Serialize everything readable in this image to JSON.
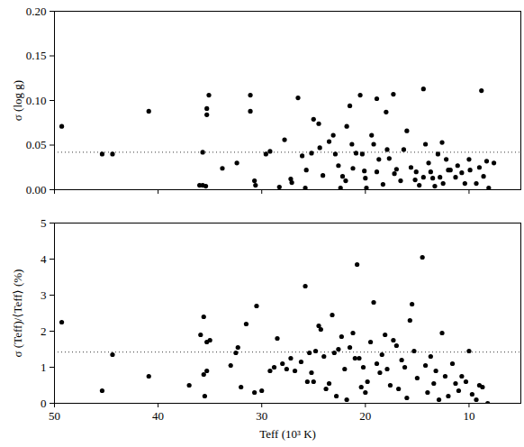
{
  "chart_data": [
    {
      "type": "scatter",
      "ylabel": "σ (log g)",
      "xlim": [
        50,
        5
      ],
      "xticks": [
        50,
        40,
        30,
        20,
        10
      ],
      "ylim": [
        0,
        0.2
      ],
      "yticks": [
        {
          "value": 0,
          "label": "0.00"
        },
        0.05,
        {
          "value": 0.1,
          "label": "0.10"
        },
        0.15,
        {
          "value": 0.2,
          "label": "0.20"
        }
      ],
      "tick_labels": "y",
      "grid": false,
      "color": "#000000",
      "marker": "circle",
      "hline": {
        "value": 0.042,
        "line_style": "dotted"
      },
      "x": [
        49.3,
        45.4,
        44.4,
        40.9,
        35.1,
        36.0,
        35.7,
        35.4,
        35.7,
        35.3,
        35.3,
        33.8,
        32.4,
        31.1,
        31.1,
        30.7,
        30.6,
        29.6,
        29.2,
        28.3,
        27.8,
        26.5,
        27.2,
        27.1,
        26.1,
        25.8,
        25.7,
        25.2,
        25.0,
        24.5,
        24.4,
        24.1,
        23.5,
        23.1,
        22.9,
        22.6,
        22.4,
        22.2,
        21.9,
        21.8,
        21.5,
        21.3,
        21.2,
        20.9,
        20.5,
        20.3,
        20.1,
        20.0,
        19.9,
        19.4,
        19.2,
        18.9,
        18.9,
        18.7,
        18.3,
        18.0,
        17.9,
        17.7,
        17.3,
        17.2,
        17.0,
        16.6,
        16.3,
        16.0,
        15.6,
        15.2,
        15.1,
        14.8,
        14.4,
        14.4,
        14.2,
        13.9,
        13.7,
        13.5,
        13.3,
        13.0,
        12.8,
        12.6,
        12.5,
        12.2,
        12.0,
        11.8,
        11.3,
        11.1,
        10.7,
        10.4,
        10.0,
        9.9,
        9.3,
        9.0,
        8.8,
        8.6,
        8.3,
        8.1,
        7.6
      ],
      "values": [
        0.071,
        0.04,
        0.04,
        0.088,
        0.106,
        0.005,
        0.005,
        0.004,
        0.042,
        0.091,
        0.084,
        0.024,
        0.03,
        0.106,
        0.088,
        0.01,
        0.005,
        0.04,
        0.043,
        0.003,
        0.056,
        0.103,
        0.012,
        0.008,
        0.038,
        0.002,
        0.022,
        0.041,
        0.079,
        0.074,
        0.047,
        0.016,
        0.054,
        0.061,
        0.04,
        0.027,
        0.002,
        0.015,
        0.01,
        0.071,
        0.094,
        0.051,
        0.024,
        0.041,
        0.106,
        0.04,
        0.021,
        0.013,
        0.002,
        0.061,
        0.051,
        0.102,
        0.02,
        0.034,
        0.006,
        0.087,
        0.045,
        0.035,
        0.107,
        0.018,
        0.023,
        0.01,
        0.045,
        0.066,
        0.025,
        0.011,
        0.02,
        0.005,
        0.014,
        0.113,
        0.051,
        0.03,
        0.02,
        0.013,
        0.004,
        0.04,
        0.014,
        0.053,
        0.007,
        0.034,
        0.022,
        0.022,
        0.014,
        0.027,
        0.019,
        0.007,
        0.034,
        0.022,
        0.007,
        0.025,
        0.111,
        0.015,
        0.032,
        0.002,
        0.03
      ]
    },
    {
      "type": "scatter",
      "xlabel": "Teff (10³ K)",
      "ylabel": "σ (Teff)/⟨Teff⟩ (%)",
      "xlim": [
        50,
        5
      ],
      "xticks": [
        50,
        40,
        30,
        20,
        10
      ],
      "ylim": [
        0,
        5
      ],
      "yticks": [
        0,
        1,
        2,
        3,
        4,
        5
      ],
      "grid": false,
      "color": "#000000",
      "marker": "circle",
      "hline": {
        "value": 1.42,
        "line_style": "dotted"
      },
      "x": [
        49.3,
        45.4,
        44.4,
        40.9,
        37.0,
        35.9,
        35.6,
        35.3,
        35.0,
        35.6,
        35.3,
        35.5,
        33.0,
        32.5,
        32.3,
        32.0,
        31.5,
        30.7,
        30.5,
        30.0,
        29.2,
        28.8,
        28.5,
        28.0,
        27.6,
        27.2,
        26.8,
        26.2,
        25.8,
        25.6,
        25.4,
        25.2,
        25.0,
        24.8,
        24.5,
        24.3,
        24.0,
        23.8,
        23.5,
        23.2,
        23.0,
        22.8,
        22.6,
        22.3,
        22.0,
        21.8,
        21.5,
        21.2,
        21.0,
        20.8,
        20.6,
        20.4,
        20.2,
        20.0,
        19.8,
        19.5,
        19.2,
        18.9,
        18.6,
        18.4,
        18.1,
        17.9,
        17.6,
        17.3,
        17.0,
        16.8,
        16.5,
        16.2,
        16.0,
        15.7,
        15.5,
        15.3,
        15.0,
        14.5,
        14.2,
        14.0,
        13.7,
        13.4,
        13.2,
        12.9,
        12.6,
        12.3,
        12.0,
        11.6,
        11.3,
        11.0,
        10.7,
        10.3,
        10.0,
        9.7,
        9.3,
        9.0,
        8.7,
        8.2
      ],
      "values": [
        2.25,
        0.35,
        1.35,
        0.75,
        0.5,
        1.9,
        2.4,
        1.7,
        1.75,
        0.8,
        0.9,
        0.2,
        1.05,
        1.4,
        1.55,
        0.45,
        2.2,
        0.3,
        2.7,
        0.35,
        0.9,
        1.0,
        1.8,
        1.1,
        0.95,
        1.25,
        0.9,
        1.15,
        3.25,
        0.6,
        1.4,
        0.85,
        0.6,
        1.45,
        2.15,
        2.05,
        1.3,
        0.4,
        0.55,
        2.45,
        1.4,
        0.2,
        1.5,
        1.85,
        0.95,
        0.1,
        1.55,
        1.95,
        1.25,
        3.85,
        1.25,
        0.45,
        1.0,
        0.3,
        0.6,
        1.7,
        2.8,
        1.1,
        0.85,
        1.35,
        1.9,
        0.95,
        0.5,
        1.75,
        1.6,
        0.4,
        1.2,
        1.0,
        0.15,
        2.3,
        2.75,
        1.45,
        0.7,
        4.05,
        1.05,
        0.3,
        1.3,
        0.55,
        0.9,
        0.1,
        1.95,
        0.75,
        0.2,
        1.1,
        0.55,
        0.35,
        0.75,
        0.6,
        1.45,
        0.25,
        0.1,
        0.5,
        0.45,
        0.0
      ]
    }
  ]
}
